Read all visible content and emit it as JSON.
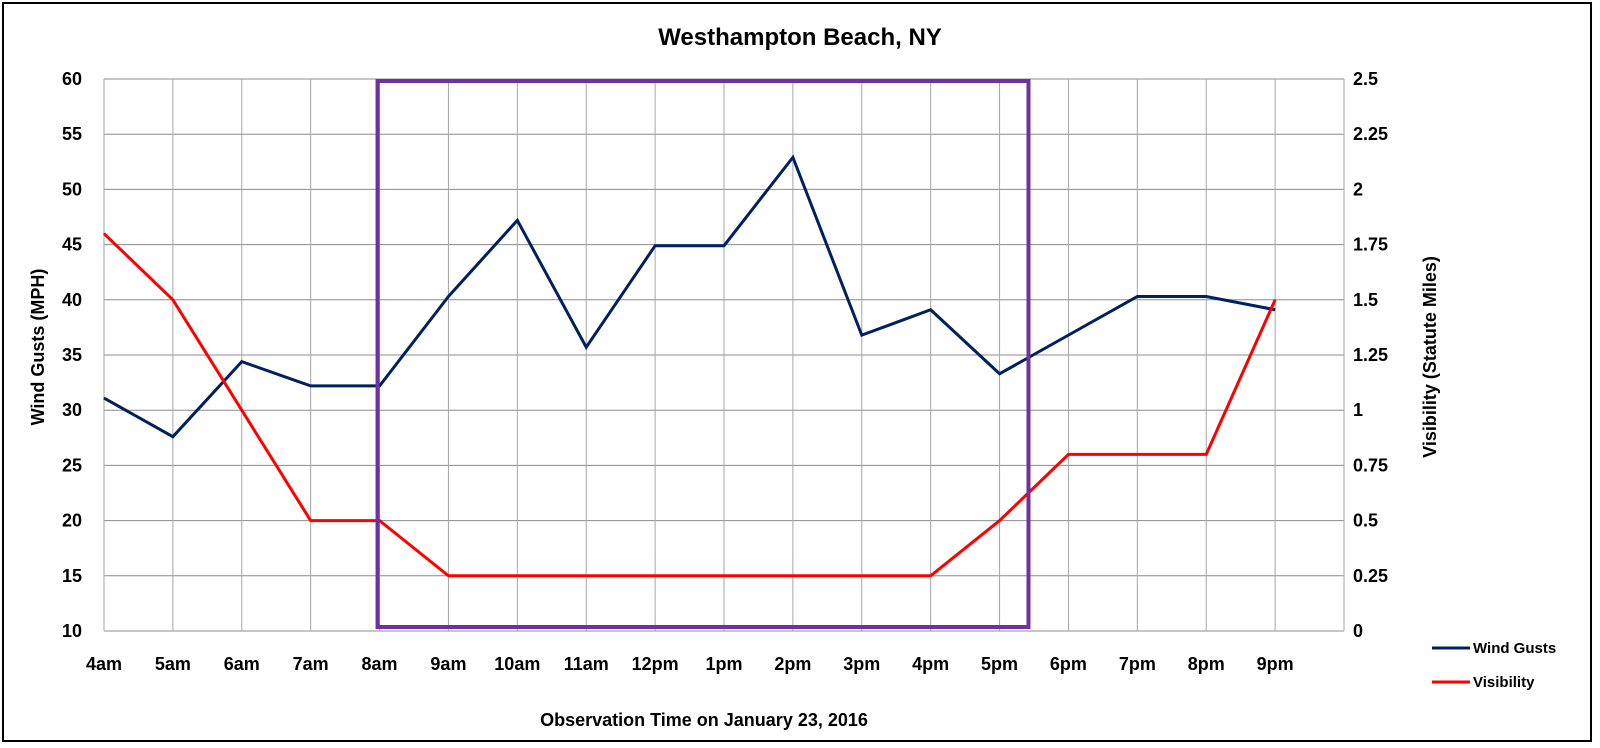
{
  "chart_data": {
    "type": "line",
    "title": "Westhampton Beach, NY",
    "xlabel": "Observation Time on January 23, 2016",
    "ylabel_left": "Wind Gusts (MPH)",
    "ylabel_right": "Visibility (Statute Miles)",
    "categories": [
      "4am",
      "5am",
      "6am",
      "7am",
      "8am",
      "9am",
      "10am",
      "11am",
      "12pm",
      "1pm",
      "2pm",
      "3pm",
      "4pm",
      "5pm",
      "6pm",
      "7pm",
      "8pm",
      "9pm"
    ],
    "y_left": {
      "min": 10,
      "max": 60,
      "step": 5,
      "ticks": [
        "10",
        "15",
        "20",
        "25",
        "30",
        "35",
        "40",
        "45",
        "50",
        "55",
        "60"
      ]
    },
    "y_right": {
      "min": 0,
      "max": 2.5,
      "step": 0.25,
      "ticks": [
        "0",
        "0.25",
        "0.5",
        "0.75",
        "1",
        "1.25",
        "1.5",
        "1.75",
        "2",
        "2.25",
        "2.5"
      ]
    },
    "grid": true,
    "legend_position": "right",
    "series": [
      {
        "name": "Wind Gusts",
        "axis": "left",
        "color": "#002060",
        "values": [
          31.1,
          27.6,
          34.4,
          32.2,
          32.2,
          40.3,
          47.2,
          35.7,
          44.9,
          44.9,
          52.9,
          36.8,
          39.1,
          33.3,
          36.8,
          40.3,
          40.3,
          39.1
        ]
      },
      {
        "name": "Visibility",
        "axis": "right",
        "color": "#ff0000",
        "values": [
          1.8,
          1.5,
          1.0,
          0.5,
          0.5,
          0.25,
          0.25,
          0.25,
          0.25,
          0.25,
          0.25,
          0.25,
          0.25,
          0.5,
          0.8,
          0.8,
          0.8,
          1.5
        ]
      }
    ],
    "highlight_box": {
      "from": "8am",
      "to": "5pm",
      "color": "#7030a0"
    }
  }
}
